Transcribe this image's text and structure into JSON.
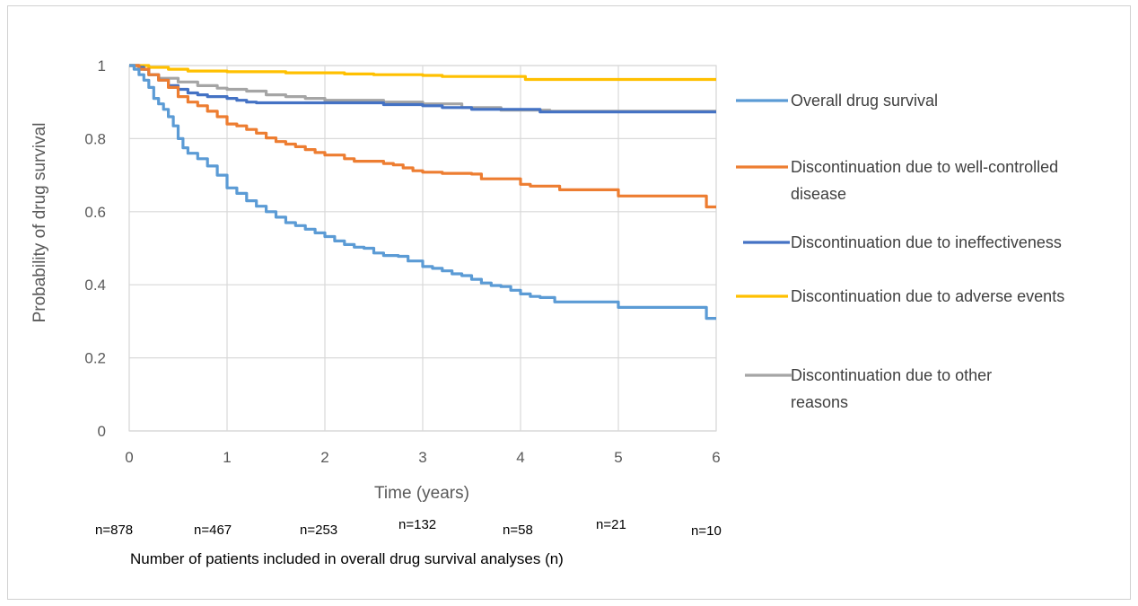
{
  "chart_data": {
    "type": "line",
    "title": "",
    "xlabel": "Time (years)",
    "ylabel": "Probability of drug survival",
    "xlim": [
      0,
      6
    ],
    "ylim": [
      0,
      1
    ],
    "x_ticks": [
      "0",
      "1",
      "2",
      "3",
      "4",
      "5",
      "6"
    ],
    "y_ticks": [
      "0",
      "0.2",
      "0.4",
      "0.6",
      "0.8",
      "1"
    ],
    "grid": true,
    "legend_position": "right",
    "series": [
      {
        "name": "Overall drug survival",
        "color": "#5b9bd5",
        "points": [
          [
            0,
            1
          ],
          [
            0.05,
            0.99
          ],
          [
            0.1,
            0.975
          ],
          [
            0.15,
            0.96
          ],
          [
            0.2,
            0.94
          ],
          [
            0.25,
            0.91
          ],
          [
            0.3,
            0.895
          ],
          [
            0.35,
            0.88
          ],
          [
            0.4,
            0.86
          ],
          [
            0.45,
            0.835
          ],
          [
            0.5,
            0.8
          ],
          [
            0.55,
            0.775
          ],
          [
            0.6,
            0.76
          ],
          [
            0.7,
            0.745
          ],
          [
            0.8,
            0.725
          ],
          [
            0.9,
            0.7
          ],
          [
            1.0,
            0.665
          ],
          [
            1.1,
            0.65
          ],
          [
            1.2,
            0.63
          ],
          [
            1.3,
            0.615
          ],
          [
            1.4,
            0.6
          ],
          [
            1.5,
            0.585
          ],
          [
            1.6,
            0.57
          ],
          [
            1.7,
            0.562
          ],
          [
            1.8,
            0.552
          ],
          [
            1.9,
            0.542
          ],
          [
            2.0,
            0.532
          ],
          [
            2.1,
            0.52
          ],
          [
            2.2,
            0.51
          ],
          [
            2.3,
            0.503
          ],
          [
            2.4,
            0.5
          ],
          [
            2.5,
            0.487
          ],
          [
            2.6,
            0.48
          ],
          [
            2.75,
            0.478
          ],
          [
            2.85,
            0.465
          ],
          [
            3.0,
            0.45
          ],
          [
            3.1,
            0.445
          ],
          [
            3.2,
            0.438
          ],
          [
            3.3,
            0.43
          ],
          [
            3.4,
            0.425
          ],
          [
            3.5,
            0.415
          ],
          [
            3.6,
            0.405
          ],
          [
            3.7,
            0.398
          ],
          [
            3.8,
            0.395
          ],
          [
            3.9,
            0.385
          ],
          [
            4.0,
            0.375
          ],
          [
            4.1,
            0.368
          ],
          [
            4.2,
            0.365
          ],
          [
            4.35,
            0.353
          ],
          [
            4.6,
            0.353
          ],
          [
            5.0,
            0.353
          ],
          [
            5.0,
            0.338
          ],
          [
            5.9,
            0.338
          ],
          [
            5.9,
            0.308
          ],
          [
            6.0,
            0.308
          ]
        ]
      },
      {
        "name": "Discontinuation due to well-controlled disease",
        "color": "#ed7d31",
        "points": [
          [
            0,
            1
          ],
          [
            0.1,
            0.99
          ],
          [
            0.2,
            0.975
          ],
          [
            0.3,
            0.96
          ],
          [
            0.4,
            0.94
          ],
          [
            0.5,
            0.915
          ],
          [
            0.6,
            0.9
          ],
          [
            0.7,
            0.89
          ],
          [
            0.8,
            0.875
          ],
          [
            0.9,
            0.86
          ],
          [
            1.0,
            0.84
          ],
          [
            1.1,
            0.835
          ],
          [
            1.2,
            0.825
          ],
          [
            1.3,
            0.815
          ],
          [
            1.4,
            0.802
          ],
          [
            1.5,
            0.792
          ],
          [
            1.6,
            0.785
          ],
          [
            1.7,
            0.778
          ],
          [
            1.8,
            0.77
          ],
          [
            1.9,
            0.762
          ],
          [
            2.0,
            0.755
          ],
          [
            2.2,
            0.745
          ],
          [
            2.3,
            0.738
          ],
          [
            2.5,
            0.738
          ],
          [
            2.6,
            0.732
          ],
          [
            2.7,
            0.728
          ],
          [
            2.8,
            0.72
          ],
          [
            2.9,
            0.712
          ],
          [
            3.0,
            0.708
          ],
          [
            3.2,
            0.705
          ],
          [
            3.5,
            0.703
          ],
          [
            3.6,
            0.69
          ],
          [
            3.9,
            0.69
          ],
          [
            4.0,
            0.675
          ],
          [
            4.1,
            0.67
          ],
          [
            4.4,
            0.66
          ],
          [
            5.0,
            0.66
          ],
          [
            5.0,
            0.643
          ],
          [
            5.9,
            0.643
          ],
          [
            5.9,
            0.613
          ],
          [
            6.0,
            0.613
          ]
        ]
      },
      {
        "name": "Discontinuation due to ineffectiveness",
        "color": "#4472c4",
        "points": [
          [
            0,
            1
          ],
          [
            0.1,
            0.995
          ],
          [
            0.15,
            0.99
          ],
          [
            0.2,
            0.975
          ],
          [
            0.3,
            0.96
          ],
          [
            0.4,
            0.945
          ],
          [
            0.5,
            0.935
          ],
          [
            0.6,
            0.925
          ],
          [
            0.7,
            0.92
          ],
          [
            0.8,
            0.915
          ],
          [
            1.0,
            0.91
          ],
          [
            1.1,
            0.905
          ],
          [
            1.2,
            0.9
          ],
          [
            1.3,
            0.898
          ],
          [
            2.5,
            0.898
          ],
          [
            2.6,
            0.893
          ],
          [
            3.0,
            0.89
          ],
          [
            3.2,
            0.885
          ],
          [
            3.5,
            0.88
          ],
          [
            4.0,
            0.88
          ],
          [
            4.2,
            0.873
          ],
          [
            6.0,
            0.873
          ]
        ]
      },
      {
        "name": "Discontinuation due to adverse events",
        "color": "#ffc000",
        "points": [
          [
            0,
            1
          ],
          [
            0.2,
            0.995
          ],
          [
            0.4,
            0.99
          ],
          [
            0.6,
            0.985
          ],
          [
            1.0,
            0.983
          ],
          [
            1.5,
            0.983
          ],
          [
            1.6,
            0.98
          ],
          [
            2.0,
            0.98
          ],
          [
            2.2,
            0.977
          ],
          [
            2.5,
            0.975
          ],
          [
            3.0,
            0.973
          ],
          [
            3.2,
            0.97
          ],
          [
            4.0,
            0.97
          ],
          [
            4.05,
            0.962
          ],
          [
            6.0,
            0.962
          ]
        ]
      },
      {
        "name": "Discontinuation due to other reasons",
        "color": "#a5a5a5",
        "points": [
          [
            0,
            1
          ],
          [
            0.1,
            0.99
          ],
          [
            0.2,
            0.975
          ],
          [
            0.3,
            0.965
          ],
          [
            0.5,
            0.955
          ],
          [
            0.7,
            0.945
          ],
          [
            0.9,
            0.938
          ],
          [
            1.0,
            0.935
          ],
          [
            1.2,
            0.93
          ],
          [
            1.4,
            0.92
          ],
          [
            1.6,
            0.915
          ],
          [
            1.8,
            0.91
          ],
          [
            2.0,
            0.905
          ],
          [
            2.5,
            0.905
          ],
          [
            2.6,
            0.9
          ],
          [
            3.0,
            0.895
          ],
          [
            3.4,
            0.885
          ],
          [
            3.8,
            0.878
          ],
          [
            4.3,
            0.875
          ],
          [
            6.0,
            0.875
          ]
        ]
      }
    ],
    "n_at_risk": {
      "title": "Number of patients included in overall drug survival analyses (n)",
      "labels": [
        "n=878",
        "n=467",
        "n=253",
        "n=132",
        "n=58",
        "n=21",
        "n=10"
      ]
    }
  }
}
